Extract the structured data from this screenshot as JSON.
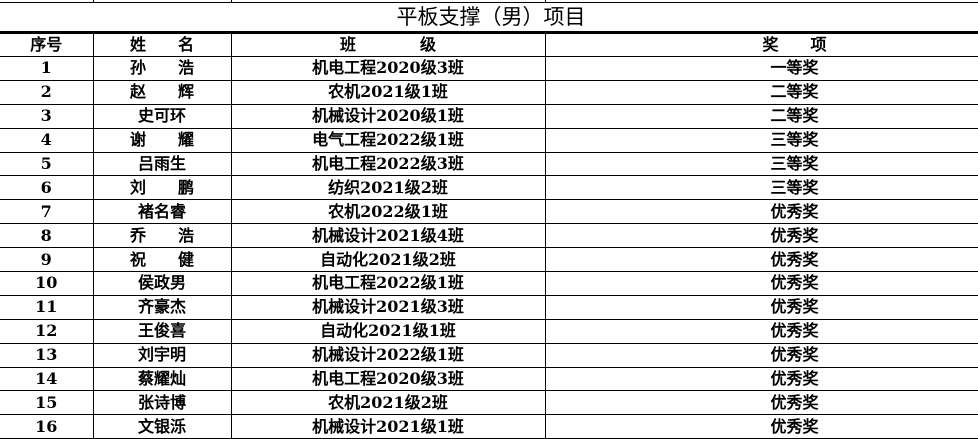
{
  "title": "平板支撑（男）项目",
  "headers": {
    "no": "序号",
    "name": "姓　　名",
    "class": "班　　　　级",
    "award": "奖　　项"
  },
  "rows": [
    {
      "no": "1",
      "name": "孙　　浩",
      "class": "机电工程2020级3班",
      "award": "一等奖"
    },
    {
      "no": "2",
      "name": "赵　　辉",
      "class": "农机2021级1班",
      "award": "二等奖"
    },
    {
      "no": "3",
      "name": "史可环",
      "class": "机械设计2020级1班",
      "award": "二等奖"
    },
    {
      "no": "4",
      "name": "谢　　耀",
      "class": "电气工程2022级1班",
      "award": "三等奖"
    },
    {
      "no": "5",
      "name": "吕雨生",
      "class": "机电工程2022级3班",
      "award": "三等奖"
    },
    {
      "no": "6",
      "name": "刘　　鹏",
      "class": "纺织2021级2班",
      "award": "三等奖"
    },
    {
      "no": "7",
      "name": "褚名睿",
      "class": "农机2022级1班",
      "award": "优秀奖"
    },
    {
      "no": "8",
      "name": "乔　　浩",
      "class": "机械设计2021级4班",
      "award": "优秀奖"
    },
    {
      "no": "9",
      "name": "祝　　健",
      "class": "自动化2021级2班",
      "award": "优秀奖"
    },
    {
      "no": "10",
      "name": "侯政男",
      "class": "机电工程2022级1班",
      "award": "优秀奖"
    },
    {
      "no": "11",
      "name": "齐豪杰",
      "class": "机械设计2021级3班",
      "award": "优秀奖"
    },
    {
      "no": "12",
      "name": "王俊喜",
      "class": "自动化2021级1班",
      "award": "优秀奖"
    },
    {
      "no": "13",
      "name": "刘宇明",
      "class": "机械设计2022级1班",
      "award": "优秀奖"
    },
    {
      "no": "14",
      "name": "蔡耀灿",
      "class": "机电工程2020级3班",
      "award": "优秀奖"
    },
    {
      "no": "15",
      "name": "张诗博",
      "class": "农机2021级2班",
      "award": "优秀奖"
    },
    {
      "no": "16",
      "name": "文银泺",
      "class": "机械设计2021级1班",
      "award": "优秀奖"
    }
  ]
}
